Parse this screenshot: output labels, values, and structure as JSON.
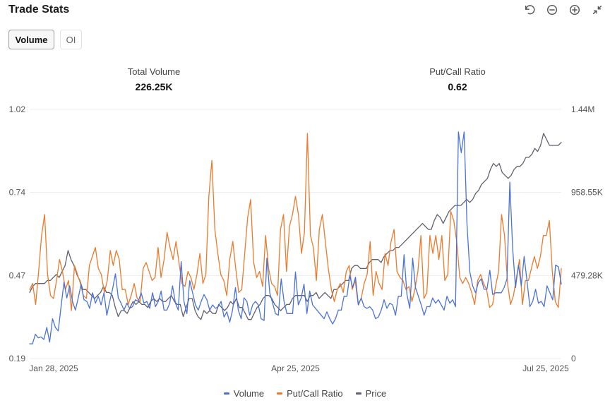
{
  "header": {
    "title": "Trade Stats"
  },
  "toolbar": {
    "icons": [
      "undo-icon",
      "zoom-out-icon",
      "zoom-in-icon",
      "collapse-icon"
    ]
  },
  "toggle": {
    "active_label": "Volume",
    "inactive_label": "OI"
  },
  "stats": {
    "total_volume_label": "Total Volume",
    "total_volume_value": "226.25K",
    "pcr_label": "Put/Call Ratio",
    "pcr_value": "0.62"
  },
  "colors": {
    "volume": "#4a72d9",
    "pcr": "#ec7a2c",
    "price": "#60606e",
    "grid": "#ececec"
  },
  "chart_data": {
    "type": "line",
    "x_tick_labels": [
      "Jan 28, 2025",
      "Apr 25, 2025",
      "Jul 25, 2025"
    ],
    "left_axis": {
      "ticks": [
        "1.02",
        "0.74",
        "0.47",
        "0.19"
      ],
      "range": [
        0.19,
        1.02
      ]
    },
    "right_axis": {
      "ticks": [
        "1.44M",
        "958.55K",
        "479.28K",
        "0"
      ],
      "range": [
        0,
        1440000
      ]
    },
    "grid": true,
    "legend_position": "bottom",
    "series": [
      {
        "name": "Volume",
        "axis": "right",
        "values": [
          85000,
          85000,
          140000,
          120000,
          125000,
          110000,
          180000,
          95000,
          230000,
          180000,
          160000,
          300000,
          440000,
          350000,
          420000,
          330000,
          280000,
          350000,
          430000,
          340000,
          330000,
          290000,
          380000,
          320000,
          360000,
          310000,
          380000,
          250000,
          330000,
          400000,
          490000,
          350000,
          320000,
          280000,
          320000,
          290000,
          300000,
          340000,
          330000,
          380000,
          320000,
          330000,
          290000,
          380000,
          300000,
          330000,
          390000,
          280000,
          280000,
          320000,
          420000,
          320000,
          280000,
          560000,
          330000,
          260000,
          450000,
          380000,
          310000,
          280000,
          330000,
          370000,
          340000,
          280000,
          310000,
          290000,
          300000,
          330000,
          240000,
          270000,
          210000,
          280000,
          410000,
          280000,
          230000,
          350000,
          330000,
          250000,
          310000,
          330000,
          310000,
          230000,
          220000,
          580000,
          380000,
          320000,
          260000,
          250000,
          460000,
          330000,
          260000,
          260000,
          260000,
          500000,
          310000,
          350000,
          430000,
          260000,
          390000,
          310000,
          290000,
          270000,
          250000,
          230000,
          270000,
          230000,
          200000,
          230000,
          280000,
          280000,
          360000,
          360000,
          480000,
          410000,
          470000,
          310000,
          350000,
          300000,
          290000,
          300000,
          280000,
          230000,
          240000,
          280000,
          340000,
          290000,
          320000,
          310000,
          250000,
          360000,
          360000,
          600000,
          370000,
          290000,
          580000,
          410000,
          360000,
          310000,
          250000,
          300000,
          300000,
          350000,
          320000,
          340000,
          310000,
          280000,
          360000,
          320000,
          340000,
          300000,
          1310000,
          1190000,
          1310000,
          780000,
          500000,
          420000,
          380000,
          440000,
          460000,
          400000,
          400000,
          510000,
          370000,
          380000,
          380000,
          380000,
          410000,
          460000,
          1020000,
          630000,
          410000,
          540000,
          420000,
          590000,
          450000,
          300000,
          330000,
          400000,
          320000,
          330000,
          300000,
          420000,
          380000,
          340000,
          540000,
          530000,
          430000
        ]
      },
      {
        "name": "Put/Call Ratio",
        "axis": "left",
        "values": [
          0.42,
          0.44,
          0.37,
          0.48,
          0.6,
          0.67,
          0.47,
          0.4,
          0.39,
          0.45,
          0.52,
          0.48,
          0.42,
          0.45,
          0.35,
          0.5,
          0.47,
          0.44,
          0.4,
          0.39,
          0.5,
          0.53,
          0.56,
          0.49,
          0.47,
          0.41,
          0.45,
          0.55,
          0.5,
          0.55,
          0.52,
          0.42,
          0.42,
          0.37,
          0.4,
          0.44,
          0.39,
          0.38,
          0.49,
          0.51,
          0.48,
          0.45,
          0.46,
          0.56,
          0.46,
          0.52,
          0.61,
          0.56,
          0.52,
          0.58,
          0.51,
          0.44,
          0.43,
          0.48,
          0.46,
          0.42,
          0.47,
          0.54,
          0.44,
          0.47,
          0.73,
          0.85,
          0.62,
          0.54,
          0.47,
          0.45,
          0.4,
          0.52,
          0.58,
          0.49,
          0.41,
          0.42,
          0.54,
          0.66,
          0.72,
          0.51,
          0.46,
          0.48,
          0.43,
          0.6,
          0.49,
          0.44,
          0.43,
          0.4,
          0.62,
          0.67,
          0.48,
          0.63,
          0.67,
          0.73,
          0.67,
          0.54,
          0.61,
          0.94,
          0.6,
          0.56,
          0.45,
          0.62,
          0.67,
          0.58,
          0.49,
          0.42,
          0.38,
          0.42,
          0.44,
          0.41,
          0.48,
          0.5,
          0.42,
          0.45,
          0.37,
          0.39,
          0.44,
          0.47,
          0.58,
          0.4,
          0.48,
          0.44,
          0.42,
          0.54,
          0.5,
          0.58,
          0.62,
          0.48,
          0.46,
          0.45,
          0.42,
          0.43,
          0.38,
          0.42,
          0.48,
          0.6,
          0.39,
          0.41,
          0.6,
          0.54,
          0.6,
          0.52,
          0.6,
          0.45,
          0.47,
          0.68,
          0.65,
          0.58,
          0.46,
          0.44,
          0.46,
          0.44,
          0.41,
          0.37,
          0.45,
          0.47,
          0.44,
          0.42,
          0.36,
          0.37,
          0.43,
          0.48,
          0.67,
          0.6,
          0.44,
          0.37,
          0.4,
          0.46,
          0.52,
          0.37,
          0.45,
          0.45,
          0.49,
          0.53,
          0.49,
          0.53,
          0.6,
          0.6,
          0.65,
          0.48,
          0.38,
          0.36,
          0.49
        ]
      },
      {
        "name": "Price",
        "axis": "left",
        "values": [
          0.41,
          0.43,
          0.44,
          0.44,
          0.44,
          0.44,
          0.45,
          0.45,
          0.46,
          0.47,
          0.46,
          0.48,
          0.5,
          0.55,
          0.52,
          0.5,
          0.47,
          0.45,
          0.42,
          0.42,
          0.41,
          0.4,
          0.39,
          0.4,
          0.41,
          0.43,
          0.41,
          0.41,
          0.4,
          0.36,
          0.33,
          0.35,
          0.35,
          0.34,
          0.36,
          0.38,
          0.37,
          0.38,
          0.37,
          0.37,
          0.36,
          0.38,
          0.39,
          0.38,
          0.39,
          0.38,
          0.38,
          0.39,
          0.4,
          0.38,
          0.37,
          0.37,
          0.33,
          0.36,
          0.39,
          0.39,
          0.35,
          0.33,
          0.32,
          0.35,
          0.34,
          0.35,
          0.34,
          0.34,
          0.37,
          0.36,
          0.35,
          0.36,
          0.38,
          0.37,
          0.39,
          0.36,
          0.36,
          0.34,
          0.32,
          0.32,
          0.34,
          0.36,
          0.37,
          0.39,
          0.4,
          0.4,
          0.39,
          0.37,
          0.36,
          0.35,
          0.36,
          0.37,
          0.37,
          0.39,
          0.4,
          0.4,
          0.4,
          0.4,
          0.38,
          0.4,
          0.4,
          0.41,
          0.39,
          0.4,
          0.41,
          0.4,
          0.39,
          0.42,
          0.42,
          0.43,
          0.44,
          0.45,
          0.45,
          0.49,
          0.5,
          0.5,
          0.49,
          0.49,
          0.49,
          0.51,
          0.52,
          0.52,
          0.52,
          0.51,
          0.53,
          0.54,
          0.55,
          0.55,
          0.56,
          0.56,
          0.57,
          0.58,
          0.59,
          0.6,
          0.61,
          0.62,
          0.63,
          0.64,
          0.63,
          0.62,
          0.62,
          0.65,
          0.67,
          0.66,
          0.64,
          0.66,
          0.68,
          0.69,
          0.7,
          0.7,
          0.7,
          0.71,
          0.72,
          0.71,
          0.72,
          0.74,
          0.75,
          0.77,
          0.78,
          0.79,
          0.82,
          0.84,
          0.83,
          0.84,
          0.81,
          0.8,
          0.79,
          0.8,
          0.82,
          0.83,
          0.83,
          0.84,
          0.86,
          0.86,
          0.87,
          0.89,
          0.88,
          0.9,
          0.94,
          0.92,
          0.9,
          0.9,
          0.9,
          0.9,
          0.91
        ]
      }
    ]
  },
  "legend": {
    "volume_label": "Volume",
    "pcr_label": "Put/Call Ratio",
    "price_label": "Price"
  }
}
